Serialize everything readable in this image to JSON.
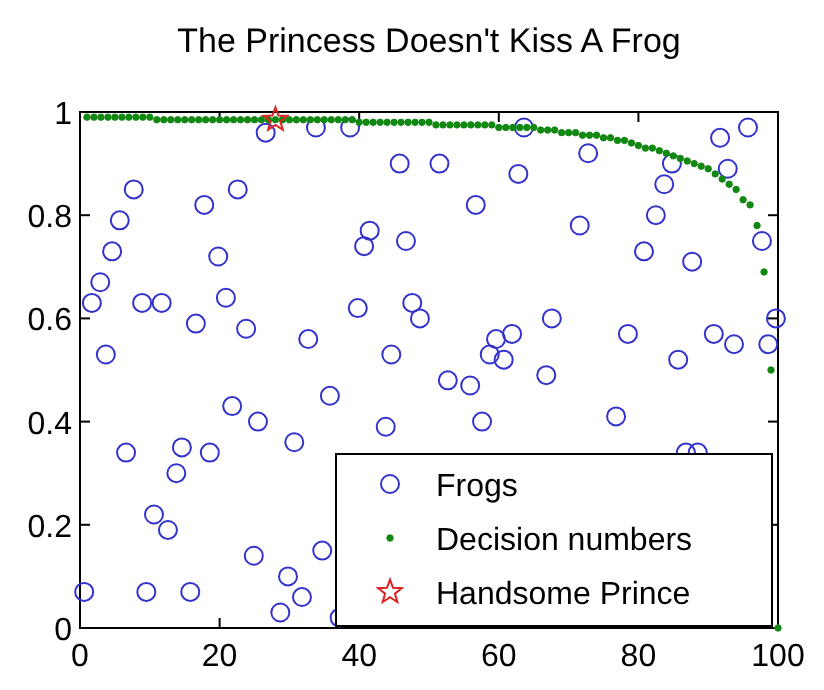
{
  "chart_data": {
    "type": "scatter",
    "title": "The Princess Doesn't Kiss A Frog",
    "xlim": [
      0,
      100
    ],
    "ylim": [
      0,
      1
    ],
    "xticks": [
      0,
      20,
      40,
      60,
      80,
      100
    ],
    "yticks": [
      0,
      0.2,
      0.4,
      0.6,
      0.8,
      1
    ],
    "grid": false,
    "legend": "bottom right",
    "series": [
      {
        "name": "Frogs",
        "color": "#3333cc",
        "marker": "circle",
        "x": [
          1.7,
          2.9,
          3.7,
          4.6,
          5.7,
          7.7,
          8.9,
          11.7,
          16.6,
          17.8,
          19.8,
          20.9,
          22.6,
          23.8,
          26.6,
          32.7,
          33.8,
          38.7,
          39.8,
          40.7,
          41.5,
          44.6,
          45.8,
          46.7,
          47.6,
          48.7,
          51.5,
          63.6,
          56.7,
          62.8,
          72.8,
          71.6,
          84.8,
          83.7,
          82.5,
          80.8,
          87.7,
          91.7,
          95.7,
          92.8,
          97.7,
          67.6,
          78.5,
          90.8,
          93.7,
          99.7,
          98.6,
          59.6,
          61.9,
          58.7,
          60.7,
          85.7,
          66.8,
          52.7,
          55.9,
          57.6,
          76.8,
          86.8,
          88.5,
          21.8,
          25.5,
          35.8,
          30.7,
          43.8,
          6.6,
          14.6,
          13.8,
          18.6,
          10.6,
          12.6,
          24.9,
          34.7,
          0.6,
          9.5,
          15.8,
          29.8,
          31.8,
          28.7,
          37.2
        ],
        "values": [
          0.63,
          0.67,
          0.53,
          0.73,
          0.79,
          0.85,
          0.63,
          0.63,
          0.59,
          0.82,
          0.72,
          0.64,
          0.85,
          0.58,
          0.96,
          0.56,
          0.97,
          0.97,
          0.62,
          0.74,
          0.77,
          0.53,
          0.9,
          0.75,
          0.63,
          0.6,
          0.9,
          0.97,
          0.82,
          0.88,
          0.92,
          0.78,
          0.9,
          0.86,
          0.8,
          0.73,
          0.71,
          0.95,
          0.97,
          0.89,
          0.75,
          0.6,
          0.57,
          0.57,
          0.55,
          0.6,
          0.55,
          0.56,
          0.57,
          0.53,
          0.52,
          0.52,
          0.49,
          0.48,
          0.47,
          0.4,
          0.41,
          0.34,
          0.34,
          0.43,
          0.4,
          0.45,
          0.36,
          0.39,
          0.34,
          0.35,
          0.3,
          0.34,
          0.22,
          0.19,
          0.14,
          0.15,
          0.07,
          0.07,
          0.07,
          0.1,
          0.06,
          0.03,
          0.02
        ]
      },
      {
        "name": "Decision numbers",
        "color": "#118811",
        "marker": "point",
        "x": [
          1,
          2,
          3,
          4,
          5,
          6,
          7,
          8,
          9,
          10,
          11,
          12,
          13,
          14,
          15,
          16,
          17,
          18,
          19,
          20,
          21,
          22,
          23,
          24,
          25,
          26,
          27,
          28,
          29,
          30,
          31,
          32,
          33,
          34,
          35,
          36,
          37,
          38,
          39,
          40,
          41,
          42,
          43,
          44,
          45,
          46,
          47,
          48,
          49,
          50,
          51,
          52,
          53,
          54,
          55,
          56,
          57,
          58,
          59,
          60,
          61,
          62,
          63,
          64,
          65,
          66,
          67,
          68,
          69,
          70,
          71,
          72,
          73,
          74,
          75,
          76,
          77,
          78,
          79,
          80,
          81,
          82,
          83,
          84,
          85,
          86,
          87,
          88,
          89,
          90,
          91,
          92,
          93,
          94,
          95,
          96,
          97,
          98,
          99,
          100
        ],
        "values": [
          0.99,
          0.99,
          0.99,
          0.99,
          0.99,
          0.99,
          0.99,
          0.99,
          0.99,
          0.99,
          0.985,
          0.985,
          0.985,
          0.985,
          0.985,
          0.985,
          0.985,
          0.985,
          0.985,
          0.985,
          0.985,
          0.985,
          0.985,
          0.985,
          0.985,
          0.985,
          0.985,
          0.985,
          0.985,
          0.985,
          0.985,
          0.985,
          0.985,
          0.985,
          0.985,
          0.985,
          0.985,
          0.985,
          0.985,
          0.98,
          0.98,
          0.98,
          0.98,
          0.98,
          0.98,
          0.98,
          0.98,
          0.98,
          0.98,
          0.98,
          0.975,
          0.975,
          0.975,
          0.975,
          0.975,
          0.975,
          0.975,
          0.975,
          0.975,
          0.97,
          0.97,
          0.97,
          0.97,
          0.97,
          0.97,
          0.965,
          0.965,
          0.965,
          0.96,
          0.96,
          0.96,
          0.955,
          0.955,
          0.955,
          0.95,
          0.95,
          0.945,
          0.945,
          0.94,
          0.935,
          0.93,
          0.93,
          0.925,
          0.92,
          0.915,
          0.91,
          0.905,
          0.9,
          0.895,
          0.89,
          0.88,
          0.87,
          0.86,
          0.85,
          0.83,
          0.82,
          0.78,
          0.69,
          0.5,
          0
        ]
      },
      {
        "name": "Handsome Prince",
        "color": "#dd2222",
        "marker": "star",
        "x": [
          28
        ],
        "values": [
          0.985
        ]
      }
    ]
  }
}
